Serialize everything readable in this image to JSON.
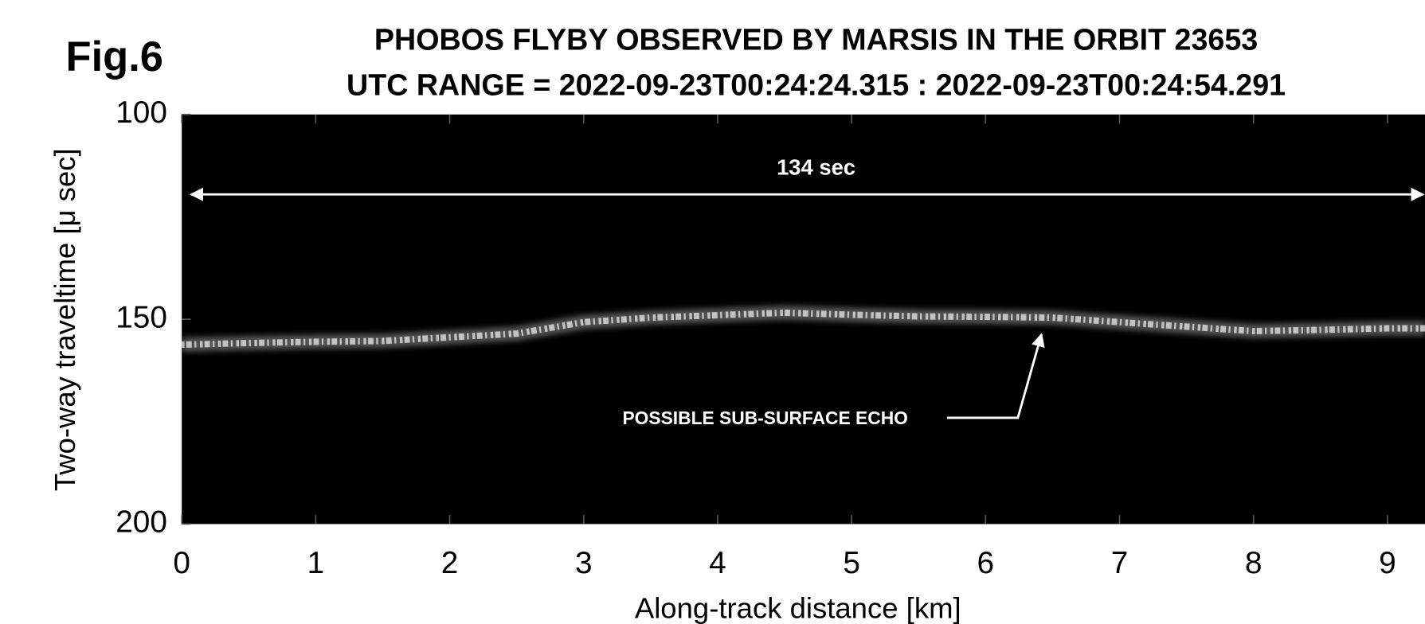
{
  "chart_data": {
    "type": "radargram",
    "figure_label": "Fig.6",
    "title": "PHOBOS FLYBY OBSERVED BY MARSIS IN THE ORBIT 23653",
    "subtitle": "UTC RANGE = 2022-09-23T00:24:24.315 : 2022-09-23T00:24:54.291",
    "x_label": "Along-track distance [km]",
    "y_label": "Two-way traveltime [μ sec]",
    "xlim": [
      0,
      9.28
    ],
    "xticks": [
      0,
      1,
      2,
      3,
      4,
      5,
      6,
      7,
      8,
      9
    ],
    "ylim": [
      100,
      200
    ],
    "yticks": [
      100,
      150,
      200
    ],
    "y_reversed": true,
    "grid": false,
    "background": "#000000",
    "echo": {
      "color": "#e8e8e8",
      "x": [
        0,
        0.5,
        1,
        1.5,
        2,
        2.5,
        3,
        3.5,
        4,
        4.5,
        5,
        5.5,
        6,
        6.5,
        7,
        7.5,
        8,
        8.5,
        9,
        9.28
      ],
      "y": [
        156.2,
        155.8,
        155.5,
        155.3,
        154.4,
        153.5,
        150.7,
        149.6,
        149.0,
        148.4,
        148.9,
        149.3,
        149.4,
        149.6,
        150.7,
        151.8,
        152.9,
        152.6,
        152.2,
        152.2
      ]
    },
    "annotations": [
      "134 sec",
      "POSSIBLE SUB-SURFACE ECHO"
    ]
  }
}
